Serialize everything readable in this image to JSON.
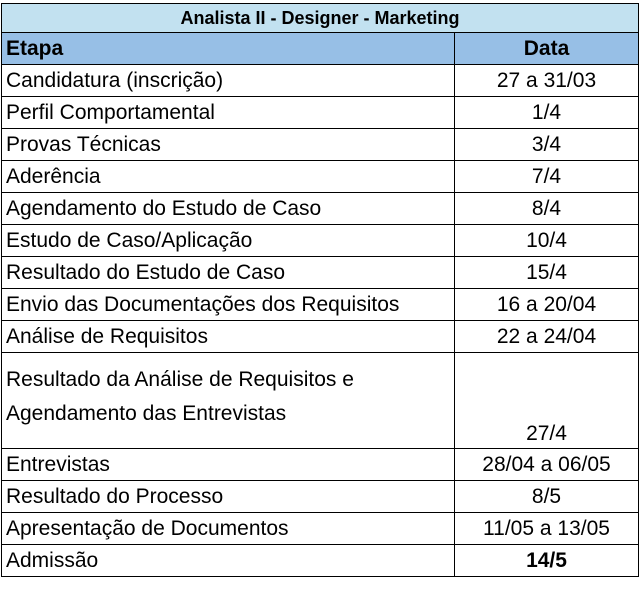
{
  "title": "Analista II  - Designer - Marketing",
  "headers": {
    "etapa": "Etapa",
    "data": "Data"
  },
  "rows": [
    {
      "etapa": "Candidatura (inscrição)",
      "data": "27 a 31/03"
    },
    {
      "etapa": "Perfil Comportamental",
      "data": "1/4"
    },
    {
      "etapa": "Provas Técnicas",
      "data": "3/4"
    },
    {
      "etapa": "Aderência",
      "data": "7/4"
    },
    {
      "etapa": "Agendamento do Estudo de Caso",
      "data": "8/4"
    },
    {
      "etapa": "Estudo de Caso/Aplicação",
      "data": "10/4"
    },
    {
      "etapa": "Resultado do Estudo de Caso",
      "data": "15/4"
    },
    {
      "etapa": "Envio das Documentações dos Requisitos",
      "data": "16 a 20/04"
    },
    {
      "etapa": "Análise de Requisitos",
      "data": "22 a 24/04"
    },
    {
      "etapa_line1": "Resultado da Análise de Requisitos e",
      "etapa_line2": "Agendamento das Entrevistas",
      "data": "27/4"
    },
    {
      "etapa": "Entrevistas",
      "data": "28/04 a 06/05"
    },
    {
      "etapa": "Resultado do Processo",
      "data": "8/5"
    },
    {
      "etapa": "Apresentação de Documentos",
      "data": "11/05 a 13/05"
    },
    {
      "etapa": "Admissão",
      "data": "14/5"
    }
  ],
  "colors": {
    "title_bg": "#c2e1f0",
    "header_bg": "#97bfe6"
  }
}
